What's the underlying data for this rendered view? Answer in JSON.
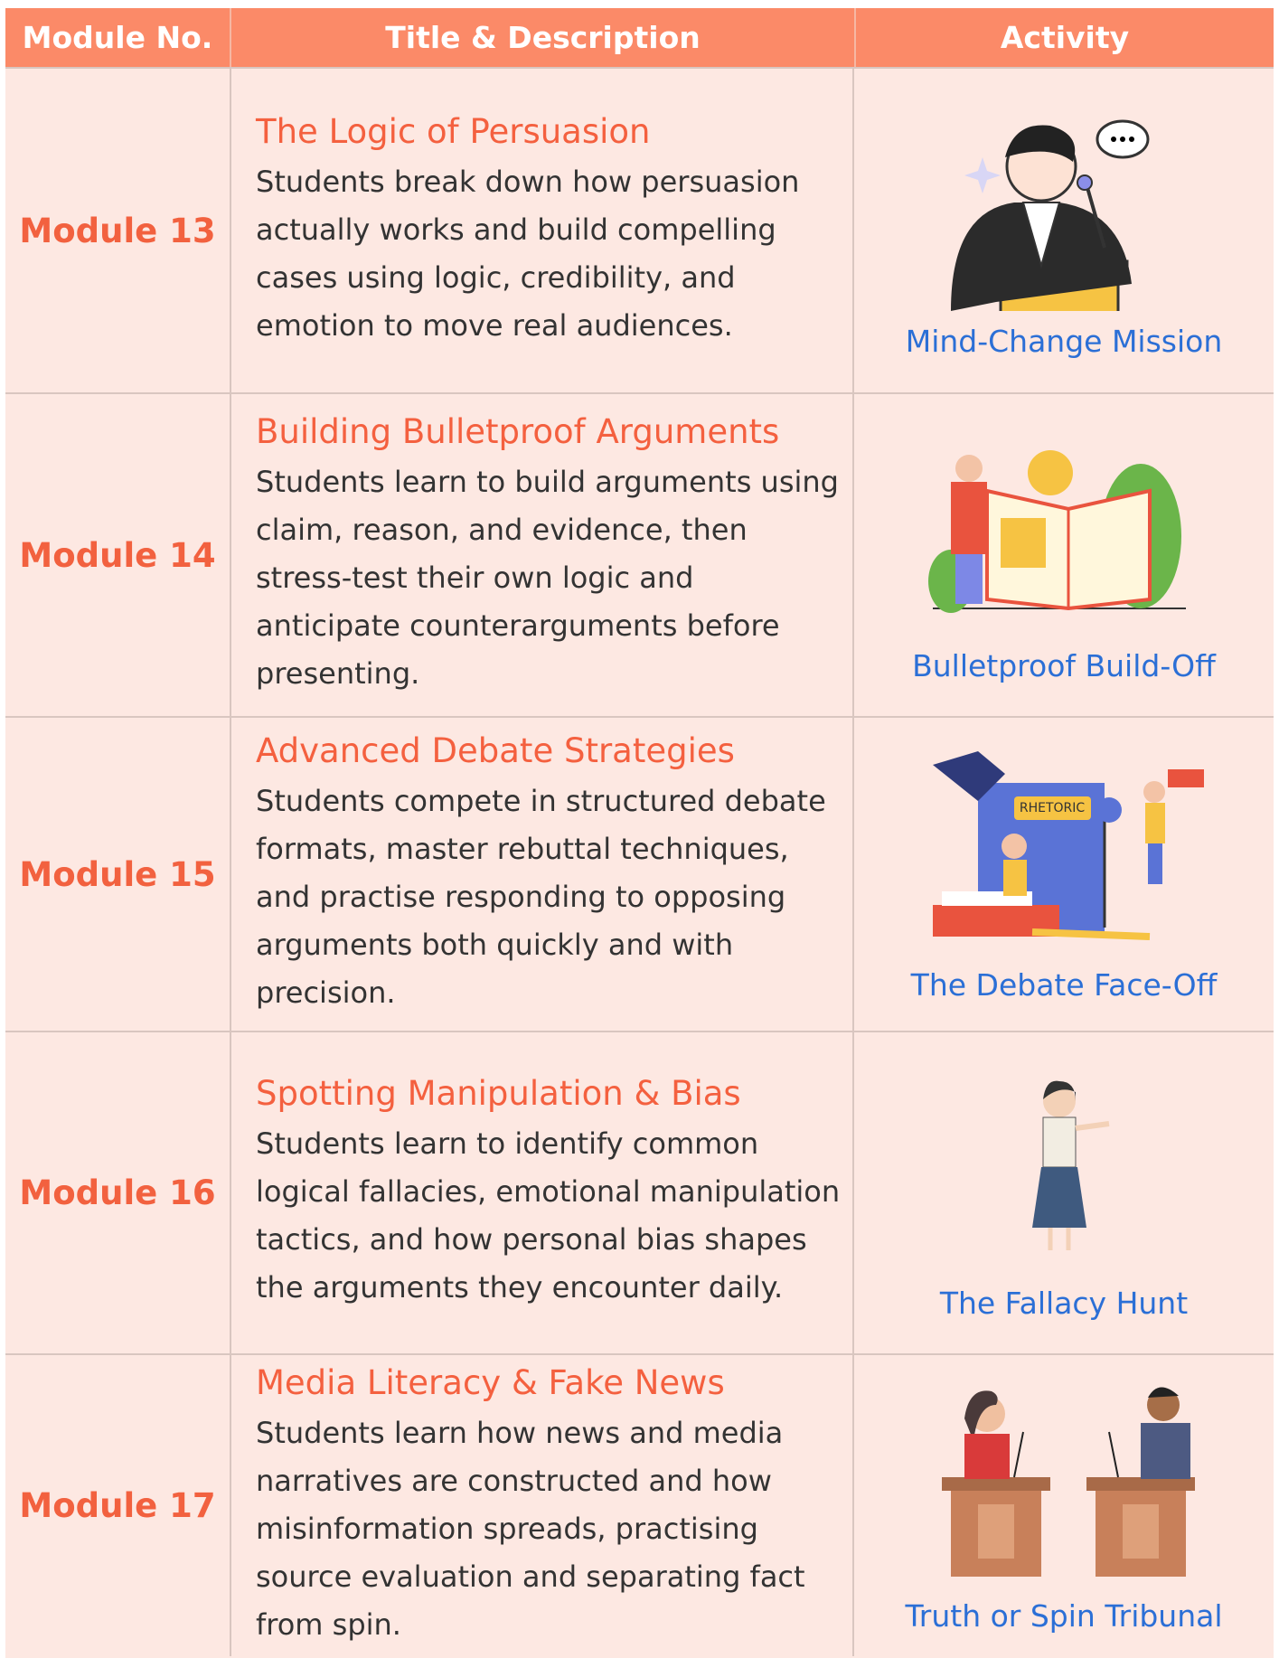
{
  "header": {
    "columns": [
      "Module No.",
      "Title & Description",
      "Activity"
    ]
  },
  "rows": [
    {
      "module": "Module 13",
      "title": "The Logic of Persuasion",
      "description": "Students break down how persuasion actually works and build compelling cases using logic, credibility, and emotion to move real audiences.",
      "activity": "Mind-Change Mission"
    },
    {
      "module": "Module 14",
      "title": "Building Bulletproof Arguments",
      "description": "Students learn to build arguments using claim, reason, and evidence, then stress-test their own logic and anticipate counterarguments before presenting.",
      "activity": "Bulletproof Build-Off"
    },
    {
      "module": "Module 15",
      "title": "Advanced Debate Strategies",
      "description": "Students compete in structured debate formats, master rebuttal techniques, and practise responding to opposing arguments both quickly and with precision.",
      "activity": "The Debate Face-Off",
      "book_label": "RHETORIC"
    },
    {
      "module": "Module 16",
      "title": "Spotting Manipulation & Bias",
      "description": "Students learn to identify common logical fallacies, emotional manipulation tactics, and how personal bias shapes the arguments they encounter daily.",
      "activity": "The Fallacy Hunt"
    },
    {
      "module": "Module 17",
      "title": "Media Literacy & Fake News",
      "description": "Students learn how news and media narratives are constructed and how misinformation spreads, practising source evaluation and separating fact from spin.",
      "activity": "Truth or Spin Tribunal"
    }
  ]
}
